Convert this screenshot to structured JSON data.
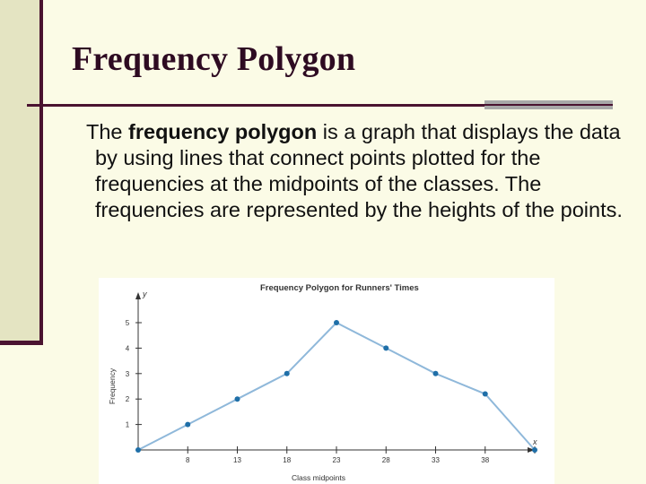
{
  "slide": {
    "title": "Frequency Polygon",
    "paragraph": {
      "lead": "The ",
      "bold": "frequency polygon",
      "rest": " is a graph that displays the data by using lines that connect points plotted for the frequencies at the midpoints of the classes. The frequencies are represented by the heights of the points."
    }
  },
  "colors": {
    "background": "#fbfbe6",
    "band": "#e4e4c2",
    "accent": "#4a1330",
    "line": "#8fb8da",
    "point": "#1f6fa8"
  },
  "chart_data": {
    "type": "line",
    "title": "Frequency Polygon for Runners' Times",
    "xlabel": "Class midpoints",
    "ylabel": "Frequency",
    "x_axis_letter": "x",
    "y_axis_letter": "y",
    "x": [
      3,
      8,
      13,
      18,
      23,
      28,
      33,
      38,
      43
    ],
    "xticks": [
      "8",
      "13",
      "18",
      "23",
      "28",
      "33",
      "38"
    ],
    "yticks": [
      "1",
      "2",
      "3",
      "4",
      "5"
    ],
    "series": [
      {
        "values": [
          0,
          1,
          2,
          3,
          5,
          4,
          3,
          2.2,
          0
        ]
      }
    ],
    "xlim": [
      3,
      43
    ],
    "ylim": [
      0,
      5
    ],
    "grid": false
  }
}
